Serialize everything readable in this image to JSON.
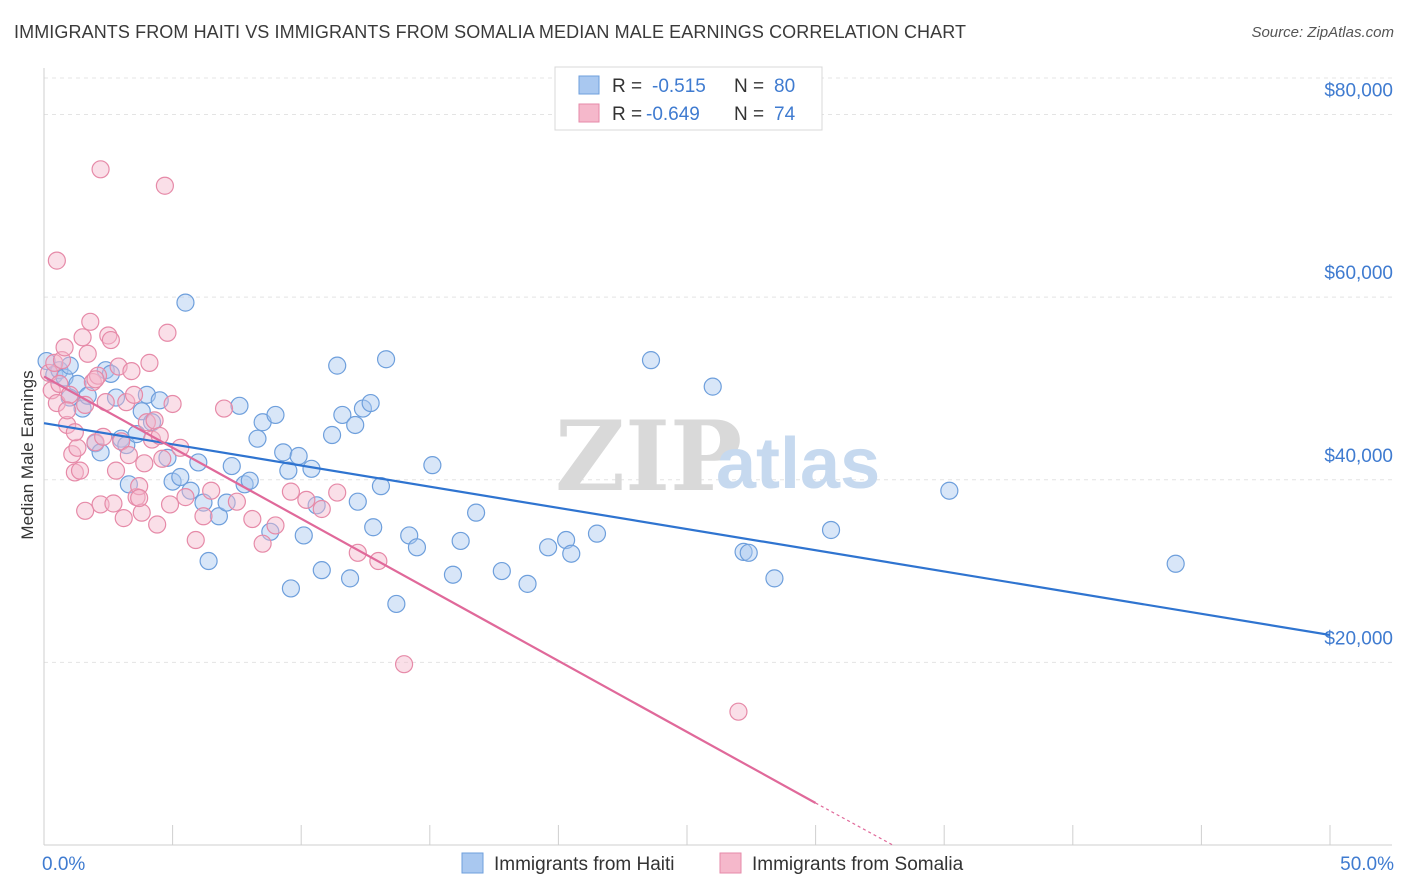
{
  "title": "IMMIGRANTS FROM HAITI VS IMMIGRANTS FROM SOMALIA MEDIAN MALE EARNINGS CORRELATION CHART",
  "source": "Source: ZipAtlas.com",
  "watermark": {
    "zip": "ZIP",
    "atlas": "atlas"
  },
  "colors": {
    "haiti": "#a9c8f0",
    "haiti_stroke": "#6e9fdc",
    "haiti_line": "#2f74d0",
    "somalia": "#f5b8cb",
    "somalia_stroke": "#e68aa8",
    "somalia_line": "#e0699a",
    "tick_text": "#3f7bd0",
    "grid": "#e4e4e4"
  },
  "stats": [
    {
      "series": "haiti",
      "r_label": "R =",
      "r_value": "-0.515",
      "n_label": "N =",
      "n_value": "80"
    },
    {
      "series": "somalia",
      "r_label": "R =",
      "r_value": "-0.649",
      "n_label": "N =",
      "n_value": "74"
    }
  ],
  "chart_data": {
    "type": "scatter",
    "title": "IMMIGRANTS FROM HAITI VS IMMIGRANTS FROM SOMALIA MEDIAN MALE EARNINGS CORRELATION CHART",
    "xlabel": "",
    "ylabel": "Median Male Earnings",
    "xlim": [
      0,
      50
    ],
    "ylim": [
      0,
      84000
    ],
    "x_tick_labels": [
      {
        "value": 0,
        "label": "0.0%"
      },
      {
        "value": 50,
        "label": "50.0%"
      }
    ],
    "y_ticks": [
      {
        "value": 20000,
        "label": "$20,000"
      },
      {
        "value": 40000,
        "label": "$40,000"
      },
      {
        "value": 60000,
        "label": "$60,000"
      },
      {
        "value": 80000,
        "label": "$80,000"
      }
    ],
    "grid": true,
    "legend_position": "bottom",
    "series": [
      {
        "name": "Immigrants from Haiti",
        "key": "haiti",
        "trend": {
          "x": [
            0,
            50
          ],
          "y": [
            46200,
            23000
          ],
          "dashed_extension": false
        },
        "points": [
          [
            0.1,
            53000
          ],
          [
            0.4,
            51500
          ],
          [
            0.6,
            52000
          ],
          [
            0.8,
            51200
          ],
          [
            1.0,
            52500
          ],
          [
            1.3,
            50500
          ],
          [
            1.0,
            49000
          ],
          [
            1.5,
            47800
          ],
          [
            1.7,
            49200
          ],
          [
            2.0,
            44000
          ],
          [
            2.2,
            43000
          ],
          [
            2.4,
            52000
          ],
          [
            2.6,
            51600
          ],
          [
            2.8,
            49000
          ],
          [
            3.0,
            44500
          ],
          [
            3.2,
            43800
          ],
          [
            3.3,
            39500
          ],
          [
            3.6,
            45000
          ],
          [
            3.8,
            47500
          ],
          [
            4.0,
            49300
          ],
          [
            4.2,
            46300
          ],
          [
            4.5,
            48700
          ],
          [
            4.8,
            42400
          ],
          [
            5.0,
            39800
          ],
          [
            5.3,
            40300
          ],
          [
            5.5,
            59400
          ],
          [
            5.7,
            38800
          ],
          [
            6.0,
            41900
          ],
          [
            6.2,
            37500
          ],
          [
            6.4,
            31100
          ],
          [
            6.8,
            36000
          ],
          [
            7.1,
            37500
          ],
          [
            7.3,
            41500
          ],
          [
            7.6,
            48100
          ],
          [
            7.8,
            39500
          ],
          [
            8.0,
            39900
          ],
          [
            8.3,
            44500
          ],
          [
            8.5,
            46300
          ],
          [
            8.8,
            34300
          ],
          [
            9.0,
            47100
          ],
          [
            9.3,
            43000
          ],
          [
            9.5,
            41000
          ],
          [
            9.6,
            28100
          ],
          [
            9.9,
            42600
          ],
          [
            10.1,
            33900
          ],
          [
            10.4,
            41200
          ],
          [
            10.6,
            37200
          ],
          [
            10.8,
            30100
          ],
          [
            11.2,
            44900
          ],
          [
            11.4,
            52500
          ],
          [
            11.6,
            47100
          ],
          [
            11.9,
            29200
          ],
          [
            12.1,
            46000
          ],
          [
            12.2,
            37600
          ],
          [
            12.4,
            47800
          ],
          [
            12.7,
            48400
          ],
          [
            12.8,
            34800
          ],
          [
            13.1,
            39300
          ],
          [
            13.3,
            53200
          ],
          [
            13.7,
            26400
          ],
          [
            14.2,
            33900
          ],
          [
            14.5,
            32600
          ],
          [
            15.1,
            41600
          ],
          [
            15.9,
            29600
          ],
          [
            16.2,
            33300
          ],
          [
            16.8,
            36400
          ],
          [
            17.8,
            30000
          ],
          [
            18.8,
            28600
          ],
          [
            19.6,
            32600
          ],
          [
            20.3,
            33400
          ],
          [
            20.5,
            31900
          ],
          [
            21.5,
            34100
          ],
          [
            23.6,
            53100
          ],
          [
            26.0,
            50200
          ],
          [
            27.2,
            32100
          ],
          [
            27.4,
            32000
          ],
          [
            28.4,
            29200
          ],
          [
            30.6,
            34500
          ],
          [
            35.2,
            38800
          ],
          [
            44.0,
            30800
          ]
        ]
      },
      {
        "name": "Immigrants from Somalia",
        "key": "somalia",
        "trend": {
          "x": [
            0,
            30
          ],
          "y": [
            51300,
            4600
          ],
          "dashed_extension": true,
          "extension_to": [
            33,
            0
          ]
        },
        "points": [
          [
            0.2,
            51700
          ],
          [
            0.3,
            49800
          ],
          [
            0.4,
            52800
          ],
          [
            0.5,
            48400
          ],
          [
            0.6,
            50500
          ],
          [
            0.7,
            53100
          ],
          [
            0.8,
            54500
          ],
          [
            0.9,
            46000
          ],
          [
            1.0,
            49300
          ],
          [
            1.1,
            42800
          ],
          [
            1.2,
            40800
          ],
          [
            1.3,
            43500
          ],
          [
            1.4,
            41000
          ],
          [
            1.5,
            55600
          ],
          [
            1.6,
            48200
          ],
          [
            1.7,
            53800
          ],
          [
            1.8,
            57300
          ],
          [
            1.9,
            50700
          ],
          [
            2.0,
            44100
          ],
          [
            2.1,
            51400
          ],
          [
            2.2,
            37300
          ],
          [
            2.3,
            44700
          ],
          [
            2.4,
            48500
          ],
          [
            2.5,
            55800
          ],
          [
            2.6,
            55300
          ],
          [
            2.7,
            37400
          ],
          [
            2.8,
            41000
          ],
          [
            2.9,
            52400
          ],
          [
            3.0,
            44200
          ],
          [
            3.1,
            35800
          ],
          [
            3.2,
            48500
          ],
          [
            3.3,
            42700
          ],
          [
            3.4,
            51900
          ],
          [
            3.5,
            49300
          ],
          [
            3.6,
            38100
          ],
          [
            3.7,
            39300
          ],
          [
            3.8,
            36400
          ],
          [
            3.9,
            41800
          ],
          [
            4.0,
            46300
          ],
          [
            4.1,
            52800
          ],
          [
            4.2,
            44400
          ],
          [
            4.3,
            46500
          ],
          [
            4.4,
            35100
          ],
          [
            4.5,
            44800
          ],
          [
            4.6,
            42300
          ],
          [
            4.7,
            72200
          ],
          [
            4.8,
            56100
          ],
          [
            4.9,
            37300
          ],
          [
            5.0,
            48300
          ],
          [
            5.3,
            43500
          ],
          [
            5.5,
            38100
          ],
          [
            5.9,
            33400
          ],
          [
            6.2,
            36000
          ],
          [
            6.5,
            38800
          ],
          [
            7.0,
            47800
          ],
          [
            7.5,
            37600
          ],
          [
            8.1,
            35700
          ],
          [
            8.5,
            33000
          ],
          [
            9.0,
            35000
          ],
          [
            9.6,
            38700
          ],
          [
            10.2,
            37800
          ],
          [
            10.8,
            36800
          ],
          [
            11.4,
            38600
          ],
          [
            12.2,
            32000
          ],
          [
            13.0,
            31100
          ],
          [
            14.0,
            19800
          ],
          [
            2.2,
            74000
          ],
          [
            0.5,
            64000
          ],
          [
            1.2,
            45200
          ],
          [
            1.6,
            36600
          ],
          [
            3.7,
            38000
          ],
          [
            27.0,
            14600
          ],
          [
            2.0,
            51000
          ],
          [
            0.9,
            47600
          ]
        ]
      }
    ]
  }
}
